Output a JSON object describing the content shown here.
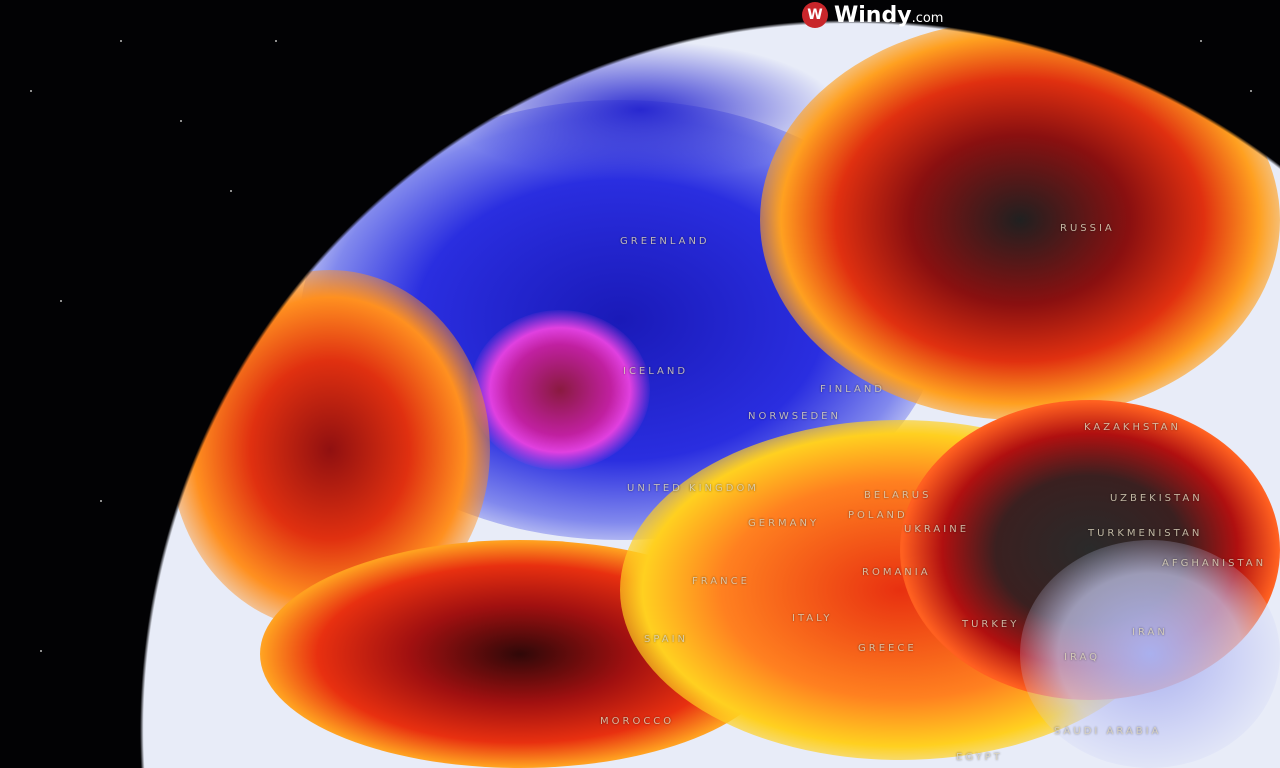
{
  "brand": {
    "name": "Windy",
    "suffix": ".com",
    "logo_icon": "windy-logo-icon",
    "logo_color": "#c8262b"
  },
  "map": {
    "labels": [
      {
        "key": "greenland",
        "text": "GREENLAND"
      },
      {
        "key": "russia",
        "text": "RUSSIA"
      },
      {
        "key": "iceland",
        "text": "ICELAND"
      },
      {
        "key": "finland",
        "text": "FINLAND"
      },
      {
        "key": "norway_sweden",
        "text": "NORWSEDEN"
      },
      {
        "key": "uk",
        "text": "UNITED KINGDOM"
      },
      {
        "key": "belarus",
        "text": "BELARUS"
      },
      {
        "key": "poland",
        "text": "POLAND"
      },
      {
        "key": "germany",
        "text": "GERMANY"
      },
      {
        "key": "ukraine",
        "text": "UKRAINE"
      },
      {
        "key": "kazakhstan",
        "text": "KAZAKHSTAN"
      },
      {
        "key": "uzbekistan",
        "text": "UZBEKISTAN"
      },
      {
        "key": "turkmenistan",
        "text": "TURKMENISTAN"
      },
      {
        "key": "afghanistan",
        "text": "AFGHANISTAN"
      },
      {
        "key": "romania",
        "text": "ROMANIA"
      },
      {
        "key": "france",
        "text": "FRANCE"
      },
      {
        "key": "italy",
        "text": "ITALY"
      },
      {
        "key": "spain",
        "text": "SPAIN"
      },
      {
        "key": "greece",
        "text": "GREECE"
      },
      {
        "key": "turkey",
        "text": "TURKEY"
      },
      {
        "key": "iraq",
        "text": "IRAQ"
      },
      {
        "key": "iran",
        "text": "IRAN"
      },
      {
        "key": "saudi",
        "text": "SAUDI ARABIA"
      },
      {
        "key": "morocco",
        "text": "MOROCCO"
      },
      {
        "key": "egypt",
        "text": "EGYPT"
      }
    ],
    "palette": {
      "cold": "#1a22c8",
      "very_cold": "#e040e0",
      "neutral": "#e8ecf8",
      "warm": "#ffd020",
      "hot": "#e83010",
      "extreme": "#2a2a2a"
    }
  }
}
